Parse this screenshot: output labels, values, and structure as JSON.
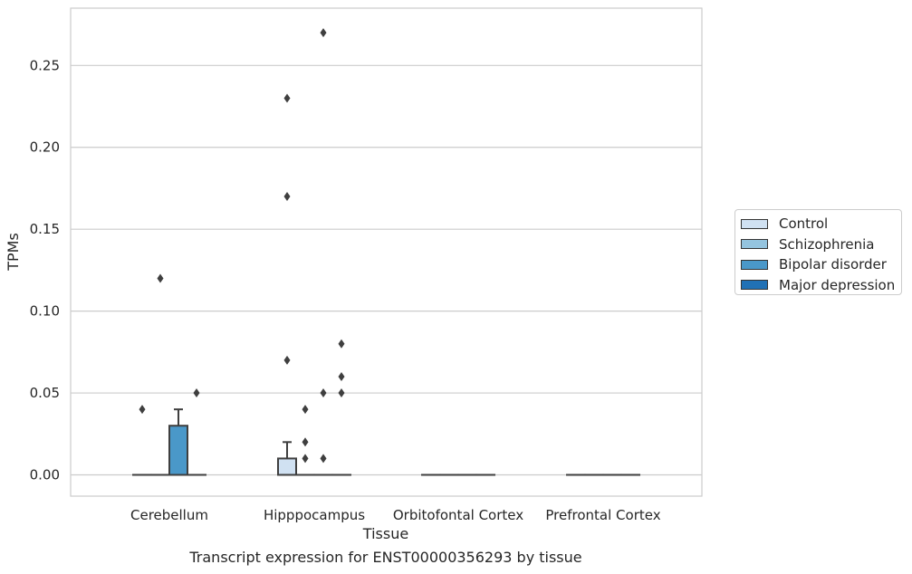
{
  "chart_data": {
    "type": "box",
    "title": "",
    "caption": "Transcript expression for ENST00000356293 by tissue",
    "xlabel": "Tissue",
    "ylabel": "TPMs",
    "ylim": [
      -0.013,
      0.285
    ],
    "yticks": [
      "0.00",
      "0.05",
      "0.10",
      "0.15",
      "0.20",
      "0.25"
    ],
    "ytick_values": [
      0,
      0.05,
      0.1,
      0.15,
      0.2,
      0.25
    ],
    "grid": true,
    "legend_position": "right",
    "categories": [
      "Cerebellum",
      "Hipppocampus",
      "Orbitofontal Cortex",
      "Prefrontal Cortex"
    ],
    "series": [
      {
        "name": "Control",
        "color": "#d0e1f2",
        "boxes": [
          {
            "q1": 0,
            "median": 0,
            "q3": 0,
            "whisker_low": 0,
            "whisker_high": 0,
            "outliers": [
              0.04
            ]
          },
          {
            "q1": 0,
            "median": 0,
            "q3": 0.01,
            "whisker_low": 0,
            "whisker_high": 0.02,
            "outliers": [
              0.07,
              0.17,
              0.23
            ]
          },
          {
            "q1": 0,
            "median": 0,
            "q3": 0,
            "whisker_low": 0,
            "whisker_high": 0,
            "outliers": []
          },
          {
            "q1": 0,
            "median": 0,
            "q3": 0,
            "whisker_low": 0,
            "whisker_high": 0,
            "outliers": []
          }
        ]
      },
      {
        "name": "Schizophrenia",
        "color": "#94c4df",
        "boxes": [
          {
            "q1": 0,
            "median": 0,
            "q3": 0,
            "whisker_low": 0,
            "whisker_high": 0,
            "outliers": [
              0.12
            ]
          },
          {
            "q1": 0,
            "median": 0,
            "q3": 0,
            "whisker_low": 0,
            "whisker_high": 0,
            "outliers": [
              0.01,
              0.02,
              0.04
            ]
          },
          {
            "q1": 0,
            "median": 0,
            "q3": 0,
            "whisker_low": 0,
            "whisker_high": 0,
            "outliers": []
          },
          {
            "q1": 0,
            "median": 0,
            "q3": 0,
            "whisker_low": 0,
            "whisker_high": 0,
            "outliers": []
          }
        ]
      },
      {
        "name": "Bipolar disorder",
        "color": "#4a98c9",
        "boxes": [
          {
            "q1": 0,
            "median": 0,
            "q3": 0.03,
            "whisker_low": 0,
            "whisker_high": 0.04,
            "outliers": []
          },
          {
            "q1": 0,
            "median": 0,
            "q3": 0,
            "whisker_low": 0,
            "whisker_high": 0,
            "outliers": [
              0.01,
              0.05,
              0.27
            ]
          },
          {
            "q1": 0,
            "median": 0,
            "q3": 0,
            "whisker_low": 0,
            "whisker_high": 0,
            "outliers": []
          },
          {
            "q1": 0,
            "median": 0,
            "q3": 0,
            "whisker_low": 0,
            "whisker_high": 0,
            "outliers": []
          }
        ]
      },
      {
        "name": "Major depression",
        "color": "#2171b5",
        "boxes": [
          {
            "q1": 0,
            "median": 0,
            "q3": 0,
            "whisker_low": 0,
            "whisker_high": 0,
            "outliers": [
              0.05
            ]
          },
          {
            "q1": 0,
            "median": 0,
            "q3": 0,
            "whisker_low": 0,
            "whisker_high": 0,
            "outliers": [
              0.05,
              0.06,
              0.08
            ]
          },
          {
            "q1": 0,
            "median": 0,
            "q3": 0,
            "whisker_low": 0,
            "whisker_high": 0,
            "outliers": []
          },
          {
            "q1": 0,
            "median": 0,
            "q3": 0,
            "whisker_low": 0,
            "whisker_high": 0,
            "outliers": []
          }
        ]
      }
    ]
  }
}
